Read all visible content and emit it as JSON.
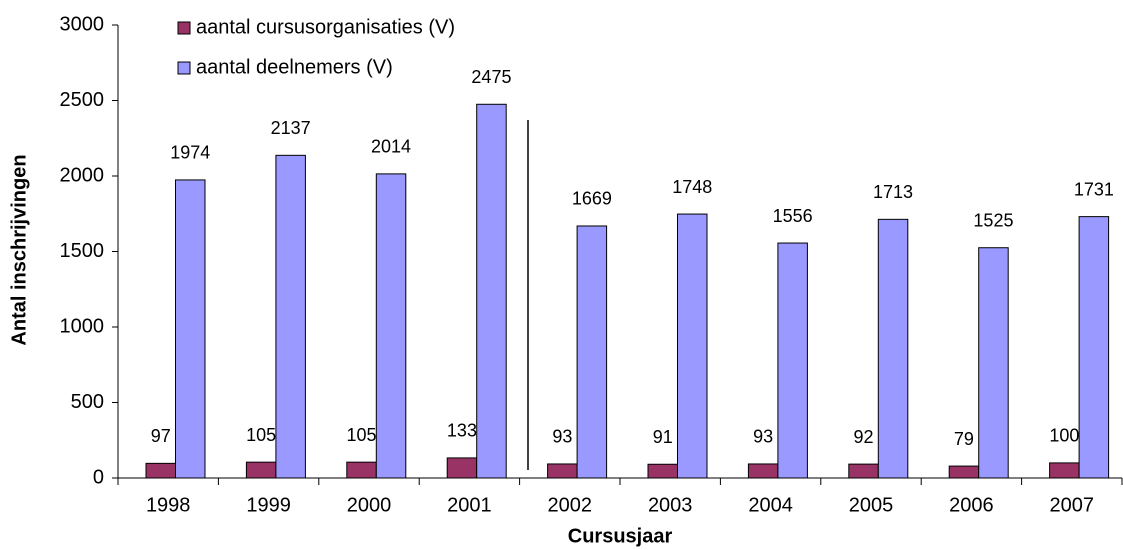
{
  "chart_data": {
    "type": "bar",
    "x_label": "Cursusjaar",
    "y_label": "Antal inschrijvingen",
    "categories": [
      "1998",
      "1999",
      "2000",
      "2001",
      "2002",
      "2003",
      "2004",
      "2005",
      "2006",
      "2007"
    ],
    "series": [
      {
        "name": "aantal cursusorganisaties (V)",
        "color": "#993366",
        "values": [
          97,
          105,
          105,
          133,
          93,
          91,
          93,
          92,
          79,
          100
        ]
      },
      {
        "name": "aantal deelnemers (V)",
        "color": "#9999ff",
        "values": [
          1974,
          2137,
          2014,
          2475,
          1669,
          1748,
          1556,
          1713,
          1525,
          1731
        ]
      }
    ],
    "ylim": [
      0,
      3000
    ],
    "yticks": [
      0,
      500,
      1000,
      1500,
      2000,
      2500,
      3000
    ]
  }
}
